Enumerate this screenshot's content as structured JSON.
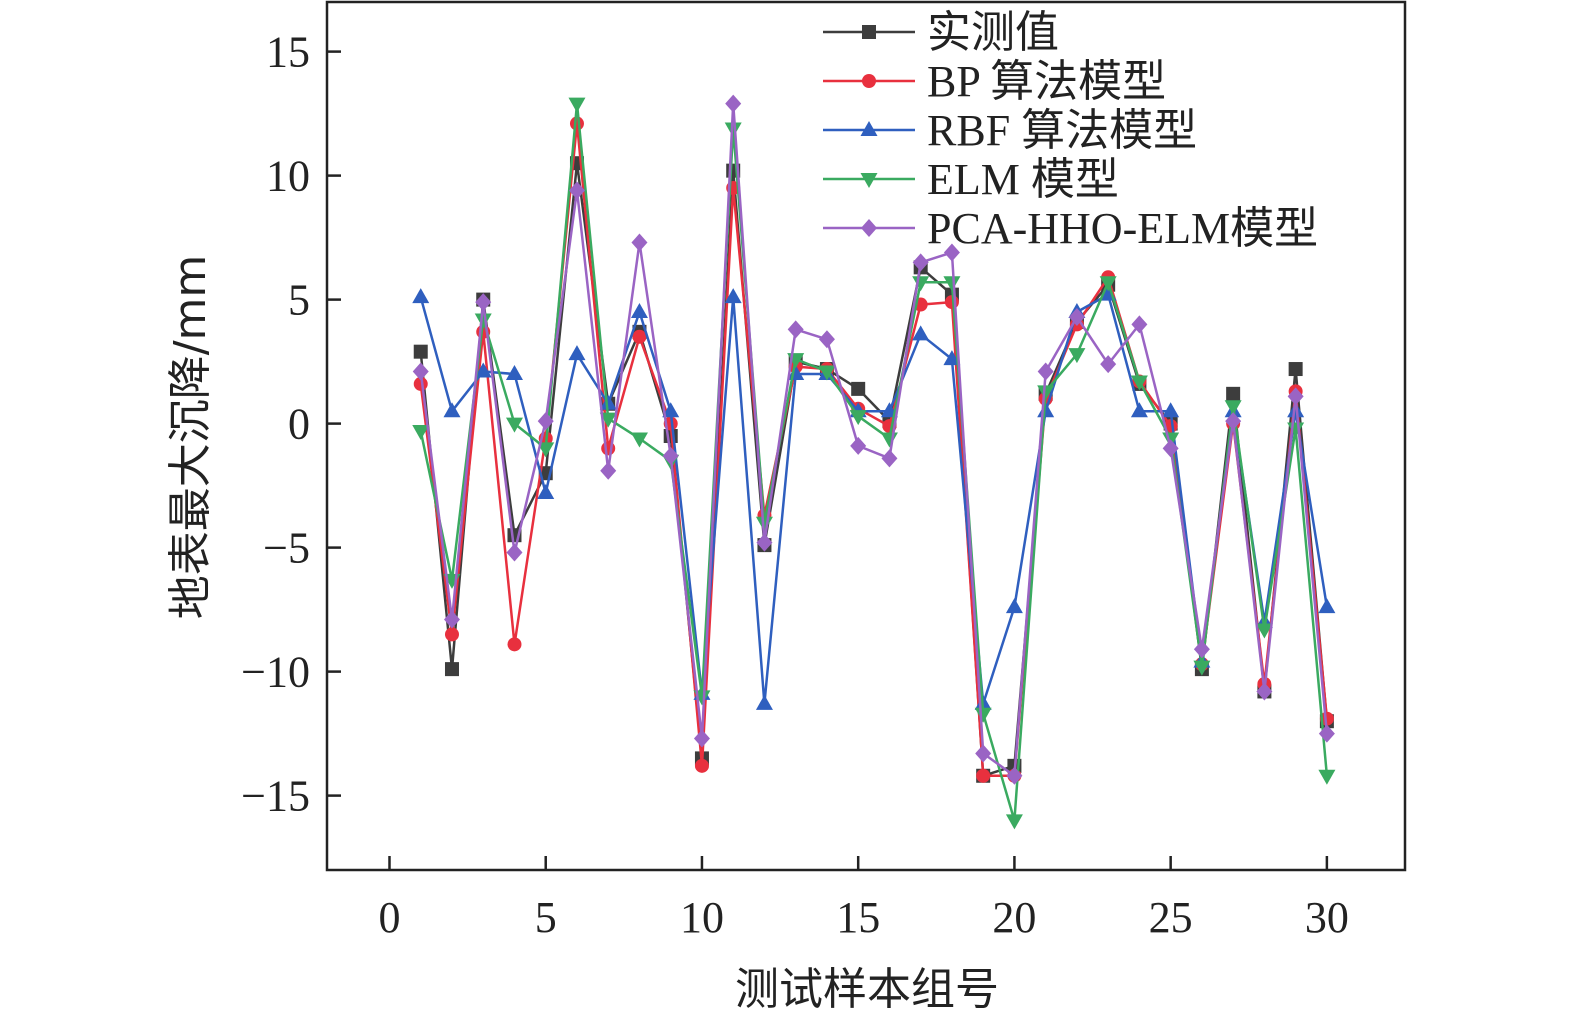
{
  "chart_data": {
    "type": "line",
    "title": "",
    "xlabel": "测试样本组号",
    "ylabel": "地表最大沉降/mm",
    "xlim": [
      -2,
      32.5
    ],
    "ylim": [
      -18,
      17
    ],
    "xticks": [
      0,
      5,
      10,
      15,
      20,
      25,
      30
    ],
    "yticks": [
      -15,
      -10,
      -5,
      0,
      5,
      10,
      15
    ],
    "ytick_labels": [
      "−15",
      "−10",
      "−5",
      "0",
      "5",
      "10",
      "15"
    ],
    "grid": false,
    "legend_position": "top-right",
    "x": [
      1,
      2,
      3,
      4,
      5,
      6,
      7,
      8,
      9,
      10,
      11,
      12,
      13,
      14,
      15,
      16,
      17,
      18,
      19,
      20,
      21,
      22,
      23,
      24,
      25,
      26,
      27,
      28,
      29,
      30
    ],
    "series": [
      {
        "name": "实测值",
        "color": "#3d3d3d",
        "marker": "square",
        "values": [
          2.9,
          -9.9,
          5.0,
          -4.5,
          -2.0,
          10.5,
          0.8,
          3.7,
          -0.5,
          -13.5,
          10.2,
          -4.9,
          2.5,
          2.2,
          1.4,
          0.1,
          6.3,
          5.2,
          -14.2,
          -13.8,
          1.2,
          4.1,
          5.6,
          1.6,
          0.0,
          -9.9,
          1.2,
          -10.8,
          2.2,
          -12.0
        ]
      },
      {
        "name": "BP 算法模型",
        "color": "#e8303e",
        "marker": "circle",
        "values": [
          1.6,
          -8.5,
          3.7,
          -8.9,
          -0.6,
          12.1,
          -1.0,
          3.5,
          0.0,
          -13.8,
          9.5,
          -3.7,
          2.3,
          2.2,
          0.6,
          -0.1,
          4.8,
          4.9,
          -14.2,
          -14.2,
          1.0,
          4.0,
          5.9,
          1.7,
          -0.1,
          -9.7,
          0.0,
          -10.5,
          1.3,
          -11.9
        ]
      },
      {
        "name": "RBF 算法模型",
        "color": "#2f5fbf",
        "marker": "triangle-up",
        "values": [
          5.1,
          0.5,
          2.1,
          2.0,
          -2.8,
          2.8,
          0.8,
          4.5,
          0.5,
          -10.9,
          5.1,
          -11.3,
          2.0,
          2.0,
          0.5,
          0.5,
          3.6,
          2.6,
          -11.3,
          -7.4,
          0.5,
          4.5,
          5.2,
          0.5,
          0.5,
          -9.6,
          0.5,
          -8.0,
          0.5,
          -7.4
        ]
      },
      {
        "name": "ELM 模型",
        "color": "#3aaa60",
        "marker": "triangle-down",
        "values": [
          -0.3,
          -6.3,
          4.2,
          0.0,
          -1.0,
          12.9,
          0.2,
          -0.6,
          -1.5,
          -11.0,
          11.9,
          -4.0,
          2.6,
          2.1,
          0.3,
          -0.6,
          5.7,
          5.7,
          -11.7,
          -16.0,
          1.3,
          2.8,
          5.7,
          1.7,
          -0.6,
          -9.8,
          0.7,
          -8.3,
          -0.2,
          -14.2
        ]
      },
      {
        "name": "PCA-HHO-ELM模型",
        "color": "#9a64c4",
        "marker": "diamond",
        "values": [
          2.1,
          -7.9,
          4.9,
          -5.2,
          0.1,
          9.4,
          -1.9,
          7.3,
          -1.3,
          -12.7,
          12.9,
          -4.8,
          3.8,
          3.4,
          -0.9,
          -1.4,
          6.5,
          6.9,
          -13.3,
          -14.2,
          2.1,
          4.3,
          2.4,
          4.0,
          -1.0,
          -9.1,
          0.1,
          -10.8,
          1.1,
          -12.5
        ]
      }
    ]
  }
}
